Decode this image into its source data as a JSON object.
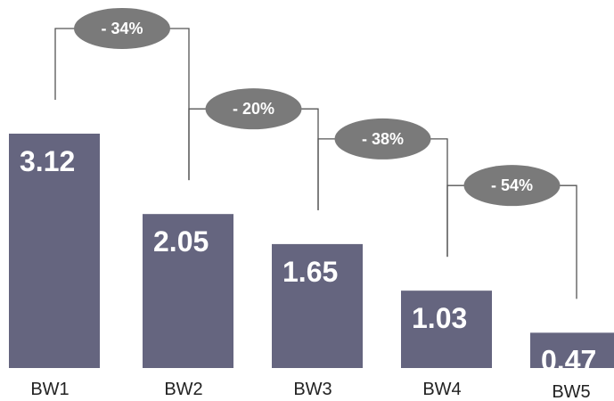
{
  "chart_data": {
    "type": "bar",
    "categories": [
      "BW1",
      "BW2",
      "BW3",
      "BW4",
      "BW5"
    ],
    "values": [
      3.12,
      2.05,
      1.65,
      1.03,
      0.47
    ],
    "value_labels": [
      "3.12",
      "2.05",
      "1.65",
      "1.03",
      "0.47"
    ],
    "changes": [
      {
        "from": "BW1",
        "to": "BW2",
        "label": "- 34%"
      },
      {
        "from": "BW2",
        "to": "BW3",
        "label": "- 20%"
      },
      {
        "from": "BW3",
        "to": "BW4",
        "label": "- 38%"
      },
      {
        "from": "BW4",
        "to": "BW5",
        "label": "- 54%"
      }
    ],
    "title": "",
    "xlabel": "",
    "ylabel": "",
    "ylim": [
      0,
      3.5
    ],
    "grid": false,
    "bar_color": "#65657f",
    "badge_color": "#7a7a7a"
  }
}
